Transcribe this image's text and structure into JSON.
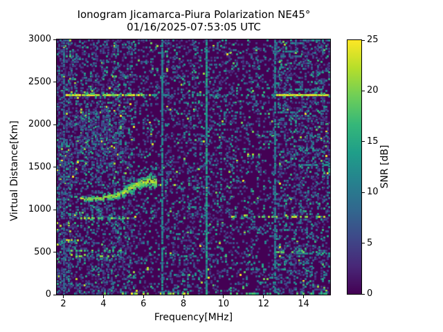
{
  "figure": {
    "background": "#ffffff",
    "text_color": "#000000"
  },
  "chart_data": {
    "type": "heatmap",
    "title": "Ionogram Jicamarca-Piura Polarization NE45°",
    "subtitle": "01/16/2025-07:53:05 UTC",
    "xlabel": "Frequency[MHz]",
    "ylabel": "Virtual Distance[Km]",
    "colorbar_label": "SNR [dB]",
    "x_range": [
      1.67,
      15.33
    ],
    "x_ticks": [
      2,
      4,
      6,
      8,
      10,
      12,
      14
    ],
    "y_range": [
      0,
      3000
    ],
    "y_ticks": [
      0,
      500,
      1000,
      1500,
      2000,
      2500,
      3000
    ],
    "colorbar_range": [
      0,
      25
    ],
    "colorbar_ticks": [
      0,
      5,
      10,
      15,
      20,
      25
    ],
    "grid": {
      "cols": 172,
      "rows": 176
    },
    "colormap": {
      "name": "viridis",
      "stops": [
        "#440154",
        "#482878",
        "#3e4989",
        "#31688e",
        "#26828e",
        "#1f9e89",
        "#35b779",
        "#6ece58",
        "#b5de2b",
        "#fde725"
      ]
    },
    "noise": {
      "seed": 20250116,
      "density_regions": [
        {
          "f1": 1.67,
          "f2": 2.35,
          "density": 0.45
        },
        {
          "f1": 2.35,
          "f2": 5.6,
          "density": 0.3
        },
        {
          "f1": 5.6,
          "f2": 6.9,
          "density": 0.15
        },
        {
          "f1": 6.9,
          "f2": 9.05,
          "density": 0.22
        },
        {
          "f1": 9.05,
          "f2": 10.6,
          "density": 0.2
        },
        {
          "f1": 10.6,
          "f2": 11.8,
          "density": 0.17
        },
        {
          "f1": 11.8,
          "f2": 12.45,
          "density": 0.13
        },
        {
          "f1": 12.45,
          "f2": 15.34,
          "density": 0.28
        }
      ],
      "dense_cloud": {
        "f1": 2.6,
        "f2": 5.0,
        "vd1": 1550,
        "vd2": 2150,
        "extra_density": 0.2
      },
      "row_streaks": {
        "f1": 10.3,
        "f2": 15.33,
        "count": 14,
        "density": 0.5,
        "snr": [
          6,
          14
        ]
      }
    },
    "features": [
      {
        "name": "interference-band-2350km-left",
        "type": "dashed-hline",
        "vd": 2360,
        "vd_jitter": 8,
        "f1": 2.15,
        "f2": 6.3,
        "density": 0.8,
        "snr": [
          16,
          25
        ]
      },
      {
        "name": "interference-band-2350km-mid",
        "type": "dashed-hline",
        "vd": 2360,
        "vd_jitter": 8,
        "f1": 6.3,
        "f2": 12.5,
        "density": 0.3,
        "snr": [
          8,
          16
        ]
      },
      {
        "name": "interference-band-2350km-right",
        "type": "solid-hline",
        "vd": 2355,
        "vd_jitter": 6,
        "f1": 12.65,
        "f2": 15.2,
        "density": 1.0,
        "snr": [
          20,
          25
        ]
      },
      {
        "name": "echo-900km-left",
        "type": "dashed-hline",
        "vd": 905,
        "vd_jitter": 10,
        "f1": 2.85,
        "f2": 5.3,
        "density": 0.55,
        "snr": [
          10,
          22
        ]
      },
      {
        "name": "echo-900km-right",
        "type": "dashed-hline",
        "vd": 915,
        "vd_jitter": 10,
        "f1": 10.4,
        "f2": 15.1,
        "density": 0.4,
        "snr": [
          12,
          24
        ]
      },
      {
        "name": "echo-500km-left-upper",
        "type": "dashed-hline",
        "vd": 520,
        "vd_jitter": 12,
        "f1": 2.3,
        "f2": 5.0,
        "density": 0.35,
        "snr": [
          8,
          20
        ]
      },
      {
        "name": "echo-500km-left-lower",
        "type": "dashed-hline",
        "vd": 460,
        "vd_jitter": 12,
        "f1": 2.2,
        "f2": 4.6,
        "density": 0.3,
        "snr": [
          8,
          22
        ]
      },
      {
        "name": "echo-500km-right",
        "type": "dashed-hline",
        "vd": 505,
        "vd_jitter": 12,
        "f1": 12.4,
        "f2": 15.0,
        "density": 0.45,
        "snr": [
          10,
          20
        ]
      },
      {
        "name": "ground-echo-left",
        "type": "dashed-hline",
        "vd": 14,
        "vd_jitter": 10,
        "f1": 4.6,
        "f2": 6.4,
        "density": 0.45,
        "snr": [
          16,
          25
        ]
      },
      {
        "name": "ground-echo-mid",
        "type": "dashed-hline",
        "vd": 14,
        "vd_jitter": 10,
        "f1": 6.8,
        "f2": 8.3,
        "density": 0.35,
        "snr": [
          14,
          24
        ]
      },
      {
        "name": "ground-echo-right",
        "type": "dashed-hline",
        "vd": 10,
        "vd_jitter": 10,
        "f1": 10.6,
        "f2": 15.3,
        "density": 0.35,
        "snr": [
          8,
          20
        ]
      },
      {
        "name": "rfi-line-2mhz",
        "type": "vline",
        "f": 2.02,
        "density": 0.45,
        "snr": [
          5,
          11
        ]
      },
      {
        "name": "rfi-line-7mhz",
        "type": "vline",
        "f": 6.93,
        "density": 0.75,
        "snr": [
          8,
          14
        ]
      },
      {
        "name": "rfi-line-9mhz",
        "type": "vline",
        "f": 9.15,
        "density": 0.85,
        "snr": [
          9,
          16
        ]
      },
      {
        "name": "rfi-line-12-5mhz",
        "type": "vline",
        "f": 12.55,
        "density": 0.6,
        "snr": [
          7,
          13
        ]
      }
    ],
    "echo_trace": {
      "name": "f-layer-trace",
      "f_start": 2.9,
      "f_end": 6.65,
      "points": [
        [
          2.9,
          1135
        ],
        [
          3.4,
          1140
        ],
        [
          3.9,
          1148
        ],
        [
          4.4,
          1160
        ],
        [
          4.8,
          1185
        ],
        [
          5.2,
          1235
        ],
        [
          5.6,
          1290
        ],
        [
          6.0,
          1330
        ],
        [
          6.35,
          1345
        ],
        [
          6.65,
          1320
        ]
      ],
      "core_halfwidth_km": [
        18,
        75
      ],
      "core_density": 0.85,
      "core_snr": [
        14,
        25
      ],
      "halo_f_start": 4.3,
      "halo_halfwidth_km": [
        40,
        240
      ],
      "halo_density": 0.28,
      "halo_snr": [
        7,
        14
      ]
    }
  }
}
